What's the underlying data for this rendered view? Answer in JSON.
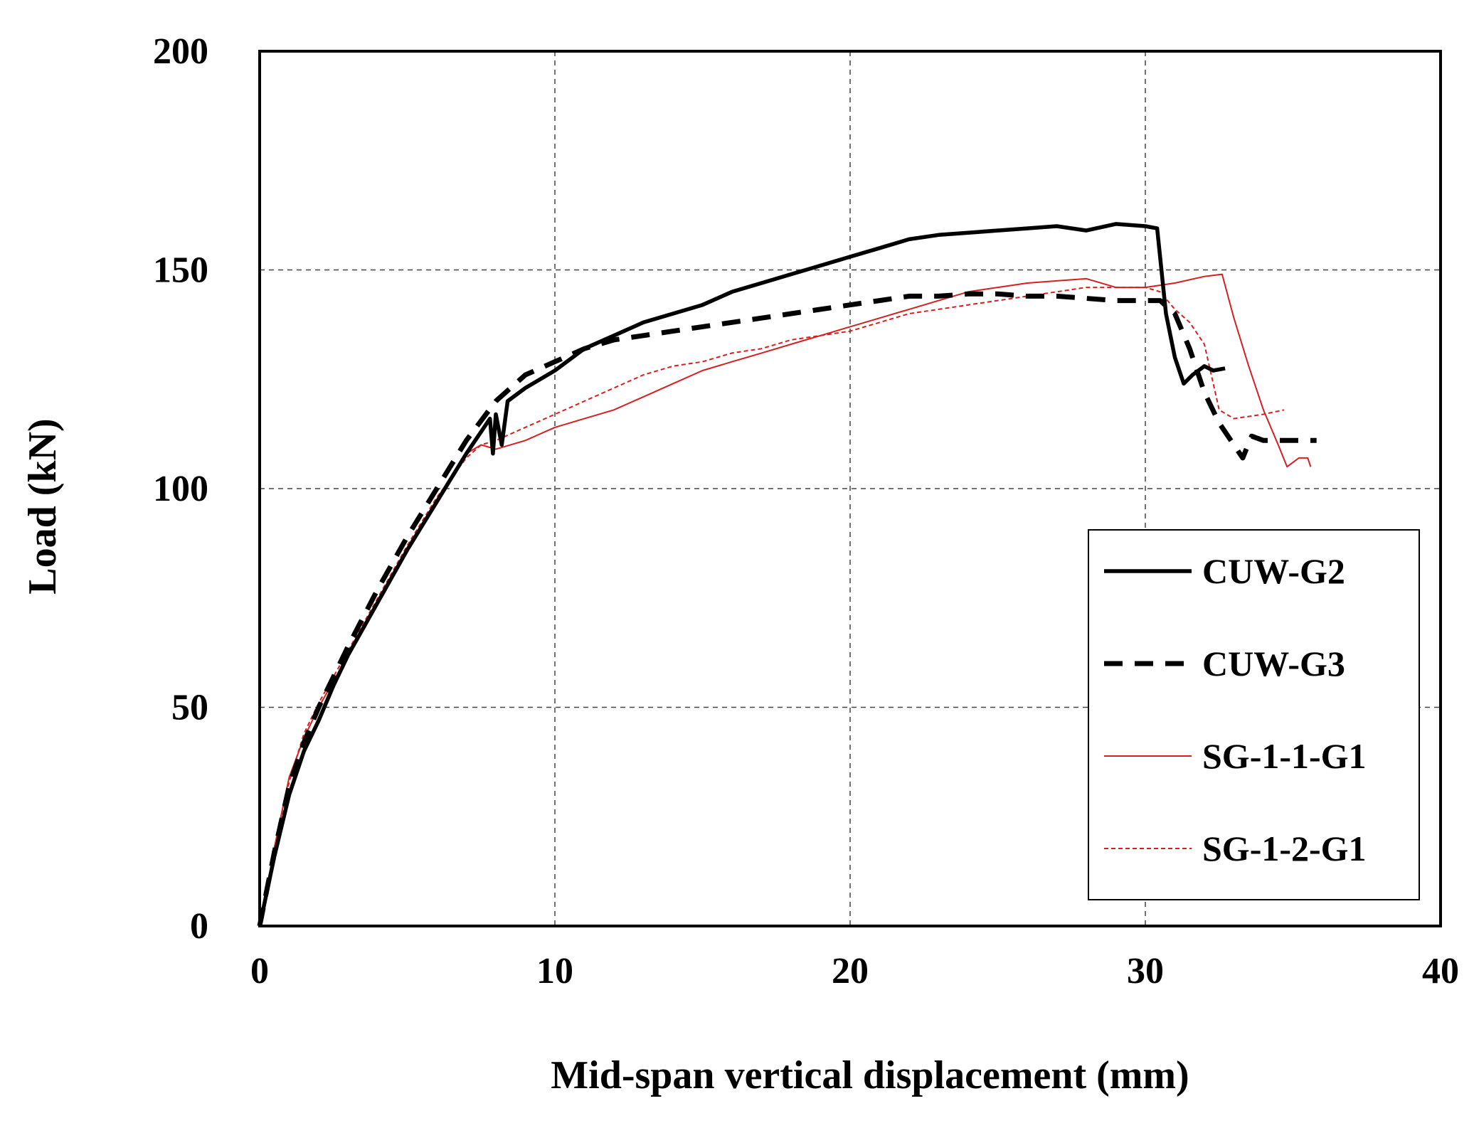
{
  "chart_data": {
    "type": "line",
    "title": "",
    "xlabel": "Mid-span vertical displacement (mm)",
    "ylabel": "Load (kN)",
    "xlim": [
      0,
      40
    ],
    "ylim": [
      0,
      200
    ],
    "xticks": [
      0,
      10,
      20,
      30,
      40
    ],
    "yticks": [
      0,
      50,
      100,
      150,
      200
    ],
    "grid": true,
    "legend_position": "lower-right",
    "series": [
      {
        "name": "CUW-G2",
        "color": "#000000",
        "style": "solid-thick",
        "points": [
          [
            0,
            0
          ],
          [
            0.5,
            16
          ],
          [
            1,
            30
          ],
          [
            1.5,
            40
          ],
          [
            2,
            47
          ],
          [
            2.5,
            55
          ],
          [
            3,
            62
          ],
          [
            4,
            74
          ],
          [
            5,
            86
          ],
          [
            6,
            97
          ],
          [
            7,
            108
          ],
          [
            7.5,
            113
          ],
          [
            7.8,
            116
          ],
          [
            7.9,
            108
          ],
          [
            8,
            117
          ],
          [
            8.2,
            110
          ],
          [
            8.4,
            120
          ],
          [
            9,
            123
          ],
          [
            10,
            127
          ],
          [
            11,
            132
          ],
          [
            12,
            135
          ],
          [
            13,
            138
          ],
          [
            14,
            140
          ],
          [
            15,
            142
          ],
          [
            16,
            145
          ],
          [
            17,
            147
          ],
          [
            18,
            149
          ],
          [
            19,
            151
          ],
          [
            20,
            153
          ],
          [
            21,
            155
          ],
          [
            22,
            157
          ],
          [
            23,
            158
          ],
          [
            24,
            158.5
          ],
          [
            25,
            159
          ],
          [
            26,
            159.5
          ],
          [
            27,
            160
          ],
          [
            28,
            159
          ],
          [
            29,
            160.5
          ],
          [
            30,
            160
          ],
          [
            30.4,
            159.5
          ],
          [
            30.7,
            140
          ],
          [
            31,
            130
          ],
          [
            31.3,
            124
          ],
          [
            31.6,
            126
          ],
          [
            32,
            128
          ],
          [
            32.3,
            127
          ],
          [
            32.7,
            127.5
          ]
        ]
      },
      {
        "name": "CUW-G3",
        "color": "#000000",
        "style": "dashed-thick",
        "points": [
          [
            0,
            0
          ],
          [
            0.5,
            17
          ],
          [
            1,
            32
          ],
          [
            1.5,
            42
          ],
          [
            2,
            50
          ],
          [
            2.5,
            57
          ],
          [
            3,
            64
          ],
          [
            4,
            77
          ],
          [
            5,
            89
          ],
          [
            6,
            100
          ],
          [
            7,
            111
          ],
          [
            8,
            120
          ],
          [
            9,
            126
          ],
          [
            10,
            129
          ],
          [
            11,
            132
          ],
          [
            12,
            134
          ],
          [
            13,
            135
          ],
          [
            14,
            136
          ],
          [
            15,
            137
          ],
          [
            16,
            138
          ],
          [
            17,
            139
          ],
          [
            18,
            140
          ],
          [
            19,
            141
          ],
          [
            20,
            142
          ],
          [
            21,
            143
          ],
          [
            22,
            144
          ],
          [
            23,
            144
          ],
          [
            24,
            144.5
          ],
          [
            25,
            144.5
          ],
          [
            26,
            144
          ],
          [
            27,
            144
          ],
          [
            28,
            143.5
          ],
          [
            29,
            143
          ],
          [
            30,
            143
          ],
          [
            30.5,
            143
          ],
          [
            31,
            140
          ],
          [
            31.5,
            132
          ],
          [
            32,
            122
          ],
          [
            32.5,
            115
          ],
          [
            33,
            110
          ],
          [
            33.3,
            107
          ],
          [
            33.6,
            112
          ],
          [
            34,
            111
          ],
          [
            35,
            111
          ],
          [
            35.8,
            111
          ]
        ]
      },
      {
        "name": "SG-1-1-G1",
        "color": "#d42020",
        "style": "solid-thin",
        "points": [
          [
            0,
            0
          ],
          [
            0.5,
            18
          ],
          [
            1,
            34
          ],
          [
            1.5,
            43
          ],
          [
            2,
            50
          ],
          [
            3,
            62
          ],
          [
            4,
            74
          ],
          [
            5,
            86
          ],
          [
            6,
            97
          ],
          [
            7,
            108
          ],
          [
            7.5,
            110
          ],
          [
            8,
            109
          ],
          [
            9,
            111
          ],
          [
            10,
            114
          ],
          [
            11,
            116
          ],
          [
            12,
            118
          ],
          [
            13,
            121
          ],
          [
            14,
            124
          ],
          [
            15,
            127
          ],
          [
            16,
            129
          ],
          [
            17,
            131
          ],
          [
            18,
            133
          ],
          [
            19,
            135
          ],
          [
            20,
            137
          ],
          [
            21,
            139
          ],
          [
            22,
            141
          ],
          [
            23,
            143
          ],
          [
            24,
            145
          ],
          [
            25,
            146
          ],
          [
            26,
            147
          ],
          [
            27,
            147.5
          ],
          [
            28,
            148
          ],
          [
            29,
            146
          ],
          [
            30,
            146
          ],
          [
            31,
            147
          ],
          [
            32,
            148.5
          ],
          [
            32.6,
            149
          ],
          [
            33,
            139
          ],
          [
            33.5,
            128
          ],
          [
            34,
            118
          ],
          [
            34.5,
            110
          ],
          [
            34.8,
            105
          ],
          [
            35.2,
            107
          ],
          [
            35.5,
            107
          ],
          [
            35.6,
            105
          ]
        ]
      },
      {
        "name": "SG-1-2-G1",
        "color": "#d42020",
        "style": "dashed-thin",
        "points": [
          [
            0,
            0
          ],
          [
            0.5,
            17
          ],
          [
            1,
            33
          ],
          [
            1.5,
            44
          ],
          [
            2,
            51
          ],
          [
            3,
            63
          ],
          [
            4,
            75
          ],
          [
            5,
            87
          ],
          [
            6,
            98
          ],
          [
            7,
            107
          ],
          [
            7.5,
            110
          ],
          [
            8,
            111
          ],
          [
            9,
            114
          ],
          [
            10,
            117
          ],
          [
            11,
            120
          ],
          [
            12,
            123
          ],
          [
            13,
            126
          ],
          [
            14,
            128
          ],
          [
            15,
            129
          ],
          [
            16,
            131
          ],
          [
            17,
            132
          ],
          [
            18,
            134
          ],
          [
            19,
            135
          ],
          [
            20,
            136
          ],
          [
            21,
            138
          ],
          [
            22,
            140
          ],
          [
            23,
            141
          ],
          [
            24,
            142
          ],
          [
            25,
            143
          ],
          [
            26,
            144
          ],
          [
            27,
            145
          ],
          [
            28,
            146
          ],
          [
            29,
            146
          ],
          [
            30,
            146
          ],
          [
            30.5,
            145
          ],
          [
            31,
            141
          ],
          [
            31.5,
            138
          ],
          [
            32,
            133
          ],
          [
            32.5,
            118
          ],
          [
            33,
            116
          ],
          [
            34,
            117
          ],
          [
            34.7,
            118
          ]
        ]
      }
    ]
  }
}
